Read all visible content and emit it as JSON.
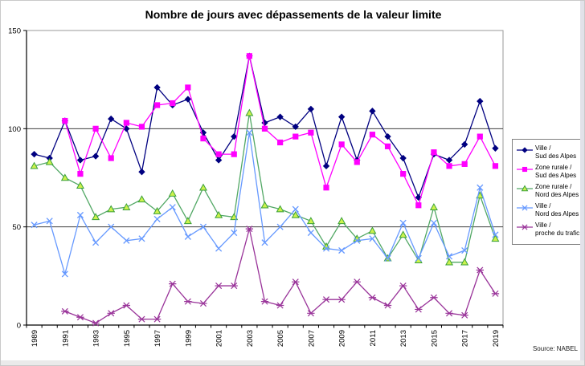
{
  "chart_data": {
    "type": "line",
    "title": "Nombre de jours avec dépassements de la valeur limite",
    "source": "Source: NABEL",
    "x": [
      1989,
      1990,
      1991,
      1992,
      1993,
      1994,
      1995,
      1996,
      1997,
      1998,
      1999,
      2000,
      2001,
      2002,
      2003,
      2004,
      2005,
      2006,
      2007,
      2008,
      2009,
      2010,
      2011,
      2012,
      2013,
      2014,
      2015,
      2016,
      2017,
      2018,
      2019
    ],
    "x_labels_every": 2,
    "ylim": [
      0,
      150
    ],
    "yticks": [
      0,
      50,
      100,
      150
    ],
    "grid": "horizontal",
    "legend_position": "right",
    "series": [
      {
        "name": "Ville / Sud des Alpes",
        "legend": [
          "Ville /",
          "Sud des Alpes"
        ],
        "color": "#000080",
        "marker": "diamond",
        "values": [
          87,
          85,
          104,
          84,
          86,
          105,
          100,
          78,
          121,
          112,
          115,
          98,
          84,
          96,
          137,
          103,
          106,
          101,
          110,
          81,
          106,
          84,
          109,
          96,
          85,
          65,
          87,
          84,
          92,
          114,
          90
        ]
      },
      {
        "name": "Zone rurale / Sud des Alpes",
        "legend": [
          "Zone rurale /",
          "Sud des Alpes"
        ],
        "color": "#ff00ff",
        "marker": "square",
        "values": [
          null,
          null,
          104,
          77,
          100,
          85,
          103,
          101,
          112,
          113,
          121,
          95,
          87,
          87,
          137,
          100,
          93,
          96,
          98,
          70,
          92,
          83,
          97,
          91,
          77,
          61,
          88,
          81,
          82,
          96,
          81
        ]
      },
      {
        "name": "Zone rurale / Nord des Alpes",
        "legend": [
          "Zone rurale /",
          "Nord des Alpes"
        ],
        "color": "#52a865",
        "marker": "triangle",
        "marker_fill": "#ccf24d",
        "marker_stroke": "#3aa03a",
        "values": [
          81,
          83,
          75,
          71,
          55,
          59,
          60,
          64,
          58,
          67,
          53,
          70,
          56,
          55,
          108,
          61,
          59,
          56,
          53,
          40,
          53,
          44,
          48,
          34,
          46,
          33,
          60,
          32,
          32,
          66,
          44
        ]
      },
      {
        "name": "Ville / Nord des Alpes",
        "legend": [
          "Ville /",
          "Nord des Alpes"
        ],
        "color": "#6699ff",
        "marker": "x",
        "values": [
          51,
          53,
          26,
          56,
          42,
          50,
          43,
          44,
          54,
          60,
          45,
          50,
          39,
          47,
          98,
          42,
          50,
          59,
          47,
          39,
          38,
          43,
          44,
          34,
          52,
          34,
          52,
          35,
          38,
          70,
          46
        ]
      },
      {
        "name": "Ville / proche du trafic",
        "legend": [
          "Ville /",
          "proche du trafic"
        ],
        "color": "#993399",
        "marker": "x-dash",
        "values": [
          null,
          null,
          7,
          4,
          1,
          6,
          10,
          3,
          3,
          21,
          12,
          11,
          20,
          20,
          49,
          12,
          10,
          22,
          6,
          13,
          13,
          22,
          14,
          10,
          20,
          8,
          14,
          6,
          5,
          28,
          16
        ]
      }
    ]
  }
}
